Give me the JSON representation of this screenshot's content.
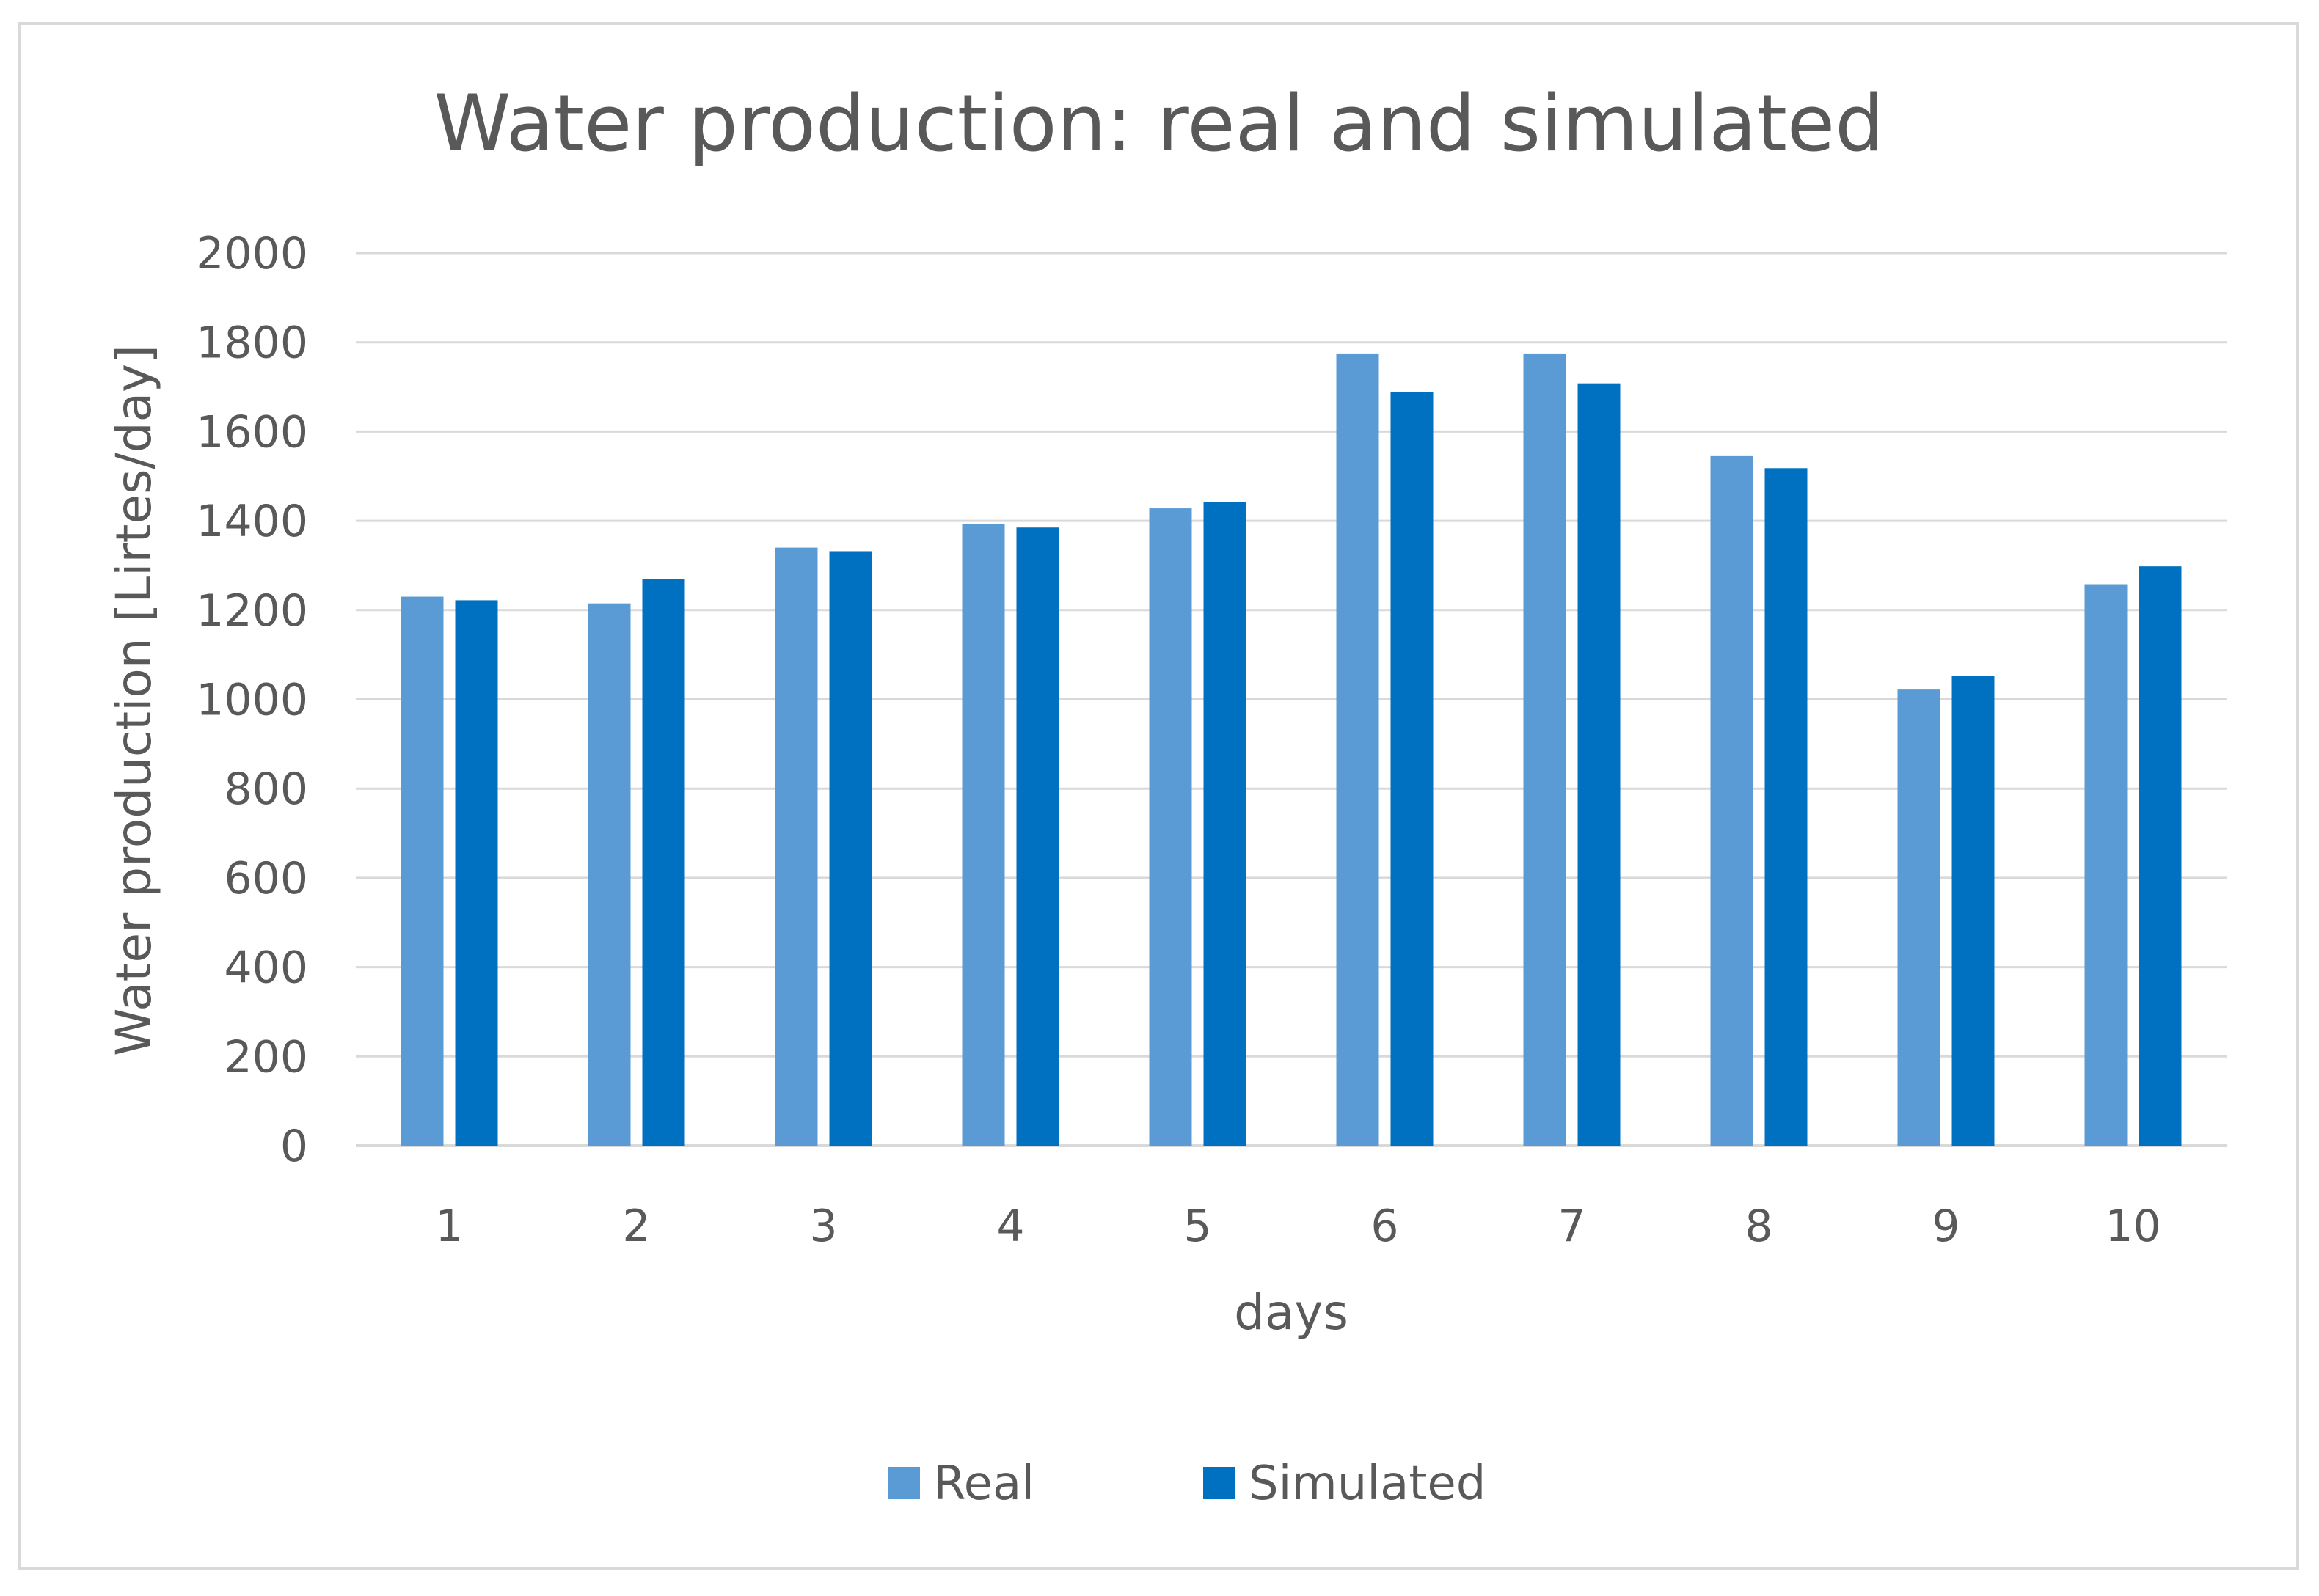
{
  "chart_data": {
    "type": "bar",
    "title": "Water production: real and simulated",
    "xlabel": "days",
    "ylabel": "Water production [Lirtes/day]",
    "categories": [
      "1",
      "2",
      "3",
      "4",
      "5",
      "6",
      "7",
      "8",
      "9",
      "10"
    ],
    "ylim": [
      0,
      2000
    ],
    "yticks": [
      "0",
      "200",
      "400",
      "600",
      "800",
      "1000",
      "1200",
      "1400",
      "1600",
      "1800",
      "2000"
    ],
    "grid": true,
    "legend_position": "bottom",
    "series": [
      {
        "name": "Real",
        "color": "#5b9bd5",
        "values": [
          1230,
          1215,
          1340,
          1393,
          1428,
          1775,
          1775,
          1545,
          1022,
          1258
        ]
      },
      {
        "name": "Simulated",
        "color": "#0070c0",
        "values": [
          1222,
          1270,
          1332,
          1385,
          1442,
          1688,
          1708,
          1518,
          1052,
          1298
        ]
      }
    ]
  }
}
